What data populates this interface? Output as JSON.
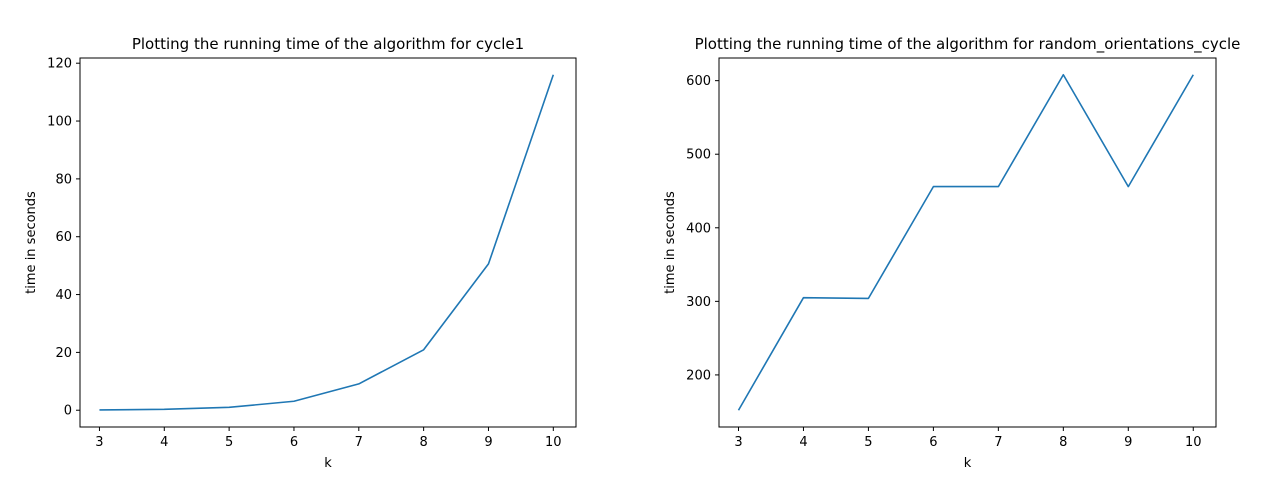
{
  "chart_data": [
    {
      "type": "line",
      "title": "Plotting the running time of the algorithm for cycle1",
      "xlabel": "k",
      "ylabel": "time in seconds",
      "x": [
        3,
        4,
        5,
        6,
        7,
        8,
        9,
        10
      ],
      "series": [
        {
          "values": [
            0.1,
            0.3,
            1.0,
            3.1,
            9.1,
            20.9,
            50.6,
            116.0
          ]
        }
      ],
      "xlim": [
        2.7,
        10.35
      ],
      "ylim": [
        -5.8,
        121.8
      ],
      "xticks": [
        3,
        4,
        5,
        6,
        7,
        8,
        9,
        10
      ],
      "yticks": [
        0,
        20,
        40,
        60,
        80,
        100,
        120
      ],
      "grid": false,
      "legend": "none",
      "line_color": "#1f77b4"
    },
    {
      "type": "line",
      "title": "Plotting the running time of the algorithm for random_orientations_cycle",
      "xlabel": "k",
      "ylabel": "time in seconds",
      "x": [
        3,
        4,
        5,
        6,
        7,
        8,
        9,
        10
      ],
      "series": [
        {
          "values": [
            152,
            305,
            304,
            456,
            456,
            608,
            456,
            608
          ]
        }
      ],
      "xlim": [
        2.7,
        10.35
      ],
      "ylim": [
        129.2,
        630.8
      ],
      "xticks": [
        3,
        4,
        5,
        6,
        7,
        8,
        9,
        10
      ],
      "yticks": [
        200,
        300,
        400,
        500,
        600
      ],
      "grid": false,
      "legend": "none",
      "line_color": "#1f77b4"
    }
  ]
}
